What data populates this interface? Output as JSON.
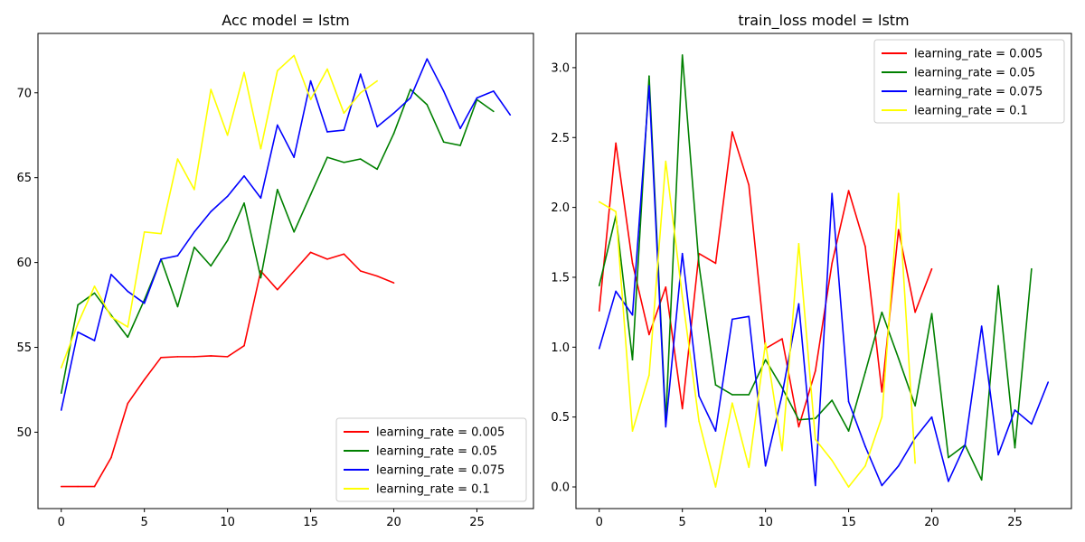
{
  "chart_data": [
    {
      "type": "line",
      "title": "Acc model = lstm",
      "xlabel": "",
      "ylabel": "",
      "xlim": [
        -1.4,
        28.4
      ],
      "ylim": [
        45.5,
        73.5
      ],
      "xticks": [
        0,
        5,
        10,
        15,
        20,
        25
      ],
      "yticks": [
        50,
        55,
        60,
        65,
        70
      ],
      "grid": false,
      "legend_position": "lower right",
      "series": [
        {
          "name": "learning_rate = 0.005",
          "color": "#ff0000",
          "x": [
            0,
            1,
            2,
            3,
            4,
            5,
            6,
            7,
            8,
            9,
            10,
            11,
            12,
            13,
            14,
            15,
            16,
            17,
            18,
            19,
            20
          ],
          "values": [
            46.8,
            46.8,
            46.8,
            48.5,
            51.7,
            53.1,
            54.4,
            54.45,
            54.45,
            54.5,
            54.45,
            55.1,
            59.5,
            58.4,
            59.5,
            60.6,
            60.2,
            60.5,
            59.5,
            59.2,
            58.8
          ]
        },
        {
          "name": "learning_rate = 0.05",
          "color": "#008000",
          "x": [
            0,
            1,
            2,
            3,
            4,
            5,
            6,
            7,
            8,
            9,
            10,
            11,
            12,
            13,
            14,
            15,
            16,
            17,
            18,
            19,
            20,
            21,
            22,
            23,
            24,
            25,
            26
          ],
          "values": [
            52.3,
            57.5,
            58.2,
            56.9,
            55.6,
            57.8,
            60.2,
            57.4,
            60.9,
            59.8,
            61.3,
            63.5,
            59.1,
            64.3,
            61.8,
            64.0,
            66.2,
            65.9,
            66.1,
            65.5,
            67.6,
            70.2,
            69.3,
            67.1,
            66.9,
            69.6,
            68.9
          ]
        },
        {
          "name": "learning_rate = 0.075",
          "color": "#0000ff",
          "x": [
            0,
            1,
            2,
            3,
            4,
            5,
            6,
            7,
            8,
            9,
            10,
            11,
            12,
            13,
            14,
            15,
            16,
            17,
            18,
            19,
            20,
            21,
            22,
            23,
            24,
            25,
            26,
            27
          ],
          "values": [
            51.3,
            55.9,
            55.4,
            59.3,
            58.3,
            57.6,
            60.2,
            60.4,
            61.8,
            63.0,
            63.9,
            65.1,
            63.8,
            68.1,
            66.2,
            70.7,
            67.7,
            67.8,
            71.1,
            68.0,
            68.8,
            69.7,
            72.0,
            70.1,
            67.9,
            69.7,
            70.1,
            68.7
          ]
        },
        {
          "name": "learning_rate = 0.1",
          "color": "#ffff00",
          "x": [
            0,
            1,
            2,
            3,
            4,
            5,
            6,
            7,
            8,
            9,
            10,
            11,
            12,
            13,
            14,
            15,
            16,
            17,
            18,
            19
          ],
          "values": [
            53.8,
            56.4,
            58.6,
            56.8,
            56.2,
            61.8,
            61.7,
            66.1,
            64.3,
            70.2,
            67.5,
            71.2,
            66.7,
            71.3,
            72.2,
            69.6,
            71.4,
            68.8,
            70.0,
            70.7
          ]
        }
      ]
    },
    {
      "type": "line",
      "title": "train_loss model = lstm",
      "xlabel": "",
      "ylabel": "",
      "xlim": [
        -1.4,
        28.4
      ],
      "ylim": [
        -0.155,
        3.245
      ],
      "xticks": [
        0,
        5,
        10,
        15,
        20,
        25
      ],
      "yticks": [
        0.0,
        0.5,
        1.0,
        1.5,
        2.0,
        2.5,
        3.0
      ],
      "ytick_labels": [
        "0.0",
        "0.5",
        "1.0",
        "1.5",
        "2.0",
        "2.5",
        "3.0"
      ],
      "grid": false,
      "legend_position": "upper right",
      "series": [
        {
          "name": "learning_rate = 0.005",
          "color": "#ff0000",
          "x": [
            0,
            1,
            2,
            3,
            4,
            5,
            6,
            7,
            8,
            9,
            10,
            11,
            12,
            13,
            14,
            15,
            16,
            17,
            18,
            19,
            20
          ],
          "values": [
            1.26,
            2.46,
            1.6,
            1.09,
            1.43,
            0.56,
            1.67,
            1.6,
            2.54,
            2.16,
            0.99,
            1.06,
            0.43,
            0.83,
            1.6,
            2.12,
            1.72,
            0.68,
            1.84,
            1.25,
            1.56
          ]
        },
        {
          "name": "learning_rate = 0.05",
          "color": "#008000",
          "x": [
            0,
            1,
            2,
            3,
            4,
            5,
            6,
            7,
            8,
            9,
            10,
            11,
            12,
            13,
            14,
            15,
            16,
            17,
            18,
            19,
            20,
            21,
            22,
            23,
            24,
            25,
            26
          ],
          "values": [
            1.44,
            1.94,
            0.91,
            2.94,
            0.47,
            3.09,
            1.59,
            0.73,
            0.66,
            0.66,
            0.91,
            0.71,
            0.48,
            0.49,
            0.62,
            0.4,
            0.82,
            1.25,
            0.92,
            0.58,
            1.24,
            0.21,
            0.3,
            0.05,
            1.44,
            0.28,
            1.56
          ]
        },
        {
          "name": "learning_rate = 0.075",
          "color": "#0000ff",
          "x": [
            0,
            1,
            2,
            3,
            4,
            5,
            6,
            7,
            8,
            9,
            10,
            11,
            12,
            13,
            14,
            15,
            16,
            17,
            18,
            19,
            20,
            21,
            22,
            23,
            24,
            25,
            26,
            27
          ],
          "values": [
            0.99,
            1.4,
            1.23,
            2.87,
            0.43,
            1.67,
            0.65,
            0.4,
            1.2,
            1.22,
            0.15,
            0.66,
            1.31,
            0.01,
            2.1,
            0.61,
            0.29,
            0.01,
            0.15,
            0.35,
            0.5,
            0.04,
            0.3,
            1.15,
            0.23,
            0.55,
            0.45,
            0.75
          ]
        },
        {
          "name": "learning_rate = 0.1",
          "color": "#ffff00",
          "x": [
            0,
            1,
            2,
            3,
            4,
            5,
            6,
            7,
            8,
            9,
            10,
            11,
            12,
            13,
            14,
            15,
            16,
            17,
            18,
            19
          ],
          "values": [
            2.04,
            1.97,
            0.4,
            0.8,
            2.33,
            1.36,
            0.47,
            0.0,
            0.6,
            0.14,
            1.03,
            0.26,
            1.74,
            0.34,
            0.19,
            0.0,
            0.15,
            0.5,
            2.1,
            0.17
          ]
        }
      ]
    }
  ]
}
